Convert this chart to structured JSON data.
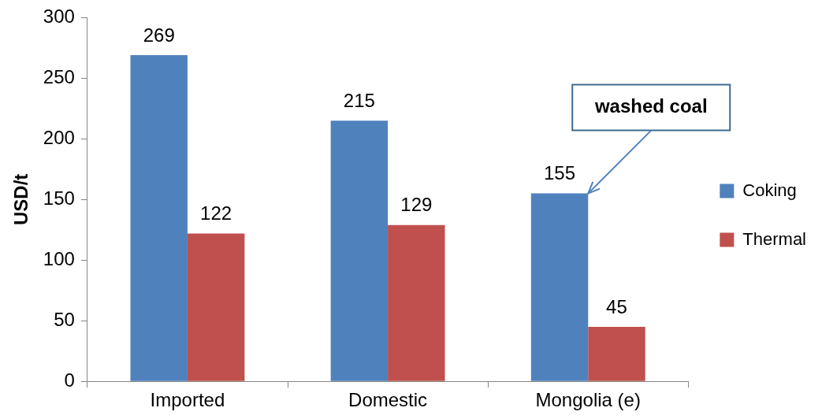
{
  "chart_data": {
    "type": "bar",
    "ylabel": "USD/t",
    "categories": [
      "Imported",
      "Domestic",
      "Mongolia (e)"
    ],
    "series": [
      {
        "name": "Coking",
        "color": "#4f81bd",
        "values": [
          269,
          215,
          155
        ]
      },
      {
        "name": "Thermal",
        "color": "#c0504d",
        "values": [
          122,
          129,
          45
        ]
      }
    ],
    "ylim": [
      0,
      300
    ],
    "yticks": [
      0,
      50,
      100,
      150,
      200,
      250,
      300
    ],
    "grid": false,
    "legend": "right",
    "data_labels": true,
    "annotations": [
      {
        "text": "washed coal",
        "x": "Mongolia (e)",
        "y": 155
      }
    ]
  }
}
